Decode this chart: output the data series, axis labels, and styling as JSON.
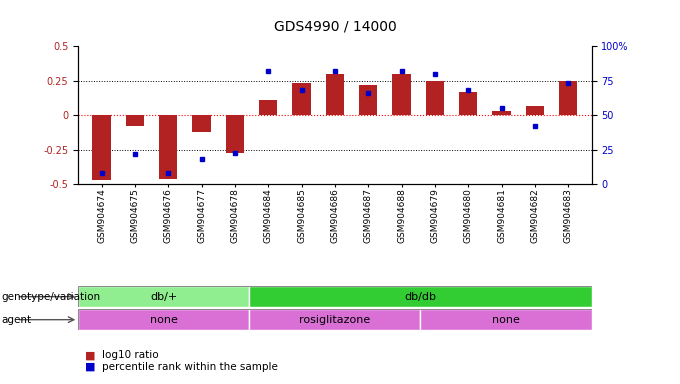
{
  "title": "GDS4990 / 14000",
  "samples": [
    "GSM904674",
    "GSM904675",
    "GSM904676",
    "GSM904677",
    "GSM904678",
    "GSM904684",
    "GSM904685",
    "GSM904686",
    "GSM904687",
    "GSM904688",
    "GSM904679",
    "GSM904680",
    "GSM904681",
    "GSM904682",
    "GSM904683"
  ],
  "log10_ratio": [
    -0.47,
    -0.08,
    -0.46,
    -0.12,
    -0.27,
    0.11,
    0.23,
    0.3,
    0.22,
    0.3,
    0.25,
    0.17,
    0.03,
    0.07,
    0.25
  ],
  "percentile_rank": [
    8,
    22,
    8,
    18,
    23,
    82,
    68,
    82,
    66,
    82,
    80,
    68,
    55,
    42,
    73
  ],
  "bar_color": "#b22222",
  "dot_color": "#0000cc",
  "ylim_left": [
    -0.5,
    0.5
  ],
  "yticks_left": [
    -0.5,
    -0.25,
    0,
    0.25,
    0.5
  ],
  "yticks_right": [
    0,
    25,
    50,
    75,
    100
  ],
  "genotype_groups": [
    {
      "label": "db/+",
      "start": 0,
      "end": 5,
      "color": "#90ee90"
    },
    {
      "label": "db/db",
      "start": 5,
      "end": 15,
      "color": "#32cd32"
    }
  ],
  "agent_groups": [
    {
      "label": "none",
      "start": 0,
      "end": 5,
      "color": "#da70d6"
    },
    {
      "label": "rosiglitazone",
      "start": 5,
      "end": 10,
      "color": "#da70d6"
    },
    {
      "label": "none",
      "start": 10,
      "end": 15,
      "color": "#da70d6"
    }
  ],
  "genotype_label": "genotype/variation",
  "agent_label": "agent",
  "legend_items": [
    {
      "color": "#b22222",
      "label": "log10 ratio"
    },
    {
      "color": "#0000cc",
      "label": "percentile rank within the sample"
    }
  ]
}
